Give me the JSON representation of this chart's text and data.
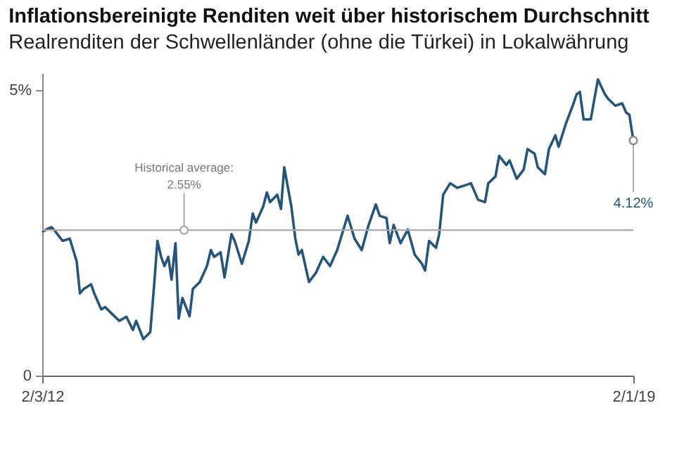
{
  "chart_data": {
    "type": "line",
    "title": "Inflationsbereinigte Renditen weit über historischem Durchschnitt",
    "subtitle": "Realrenditen der Schwellenländer (ohne die Türkei) in Lokalwährung",
    "x": [
      "2012-02-03",
      "2012-03-01",
      "2012-03-15",
      "2012-04-01",
      "2012-05-01",
      "2012-06-01",
      "2012-07-01",
      "2012-07-15",
      "2012-08-01",
      "2012-09-01",
      "2012-09-15",
      "2012-10-15",
      "2012-11-01",
      "2012-12-01",
      "2013-01-01",
      "2013-02-01",
      "2013-03-01",
      "2013-03-15",
      "2013-04-15",
      "2013-05-15",
      "2013-06-01",
      "2013-06-15",
      "2013-07-01",
      "2013-07-15",
      "2013-08-01",
      "2013-08-15",
      "2013-09-01",
      "2013-09-15",
      "2013-10-01",
      "2013-11-01",
      "2013-11-15",
      "2013-12-15",
      "2014-01-15",
      "2014-02-01",
      "2014-02-15",
      "2014-03-15",
      "2014-04-01",
      "2014-05-01",
      "2014-05-15",
      "2014-06-15",
      "2014-07-15",
      "2014-08-01",
      "2014-08-15",
      "2014-09-15",
      "2014-10-01",
      "2014-10-15",
      "2014-11-15",
      "2014-12-01",
      "2014-12-15",
      "2015-01-15",
      "2015-02-01",
      "2015-02-15",
      "2015-03-01",
      "2015-04-01",
      "2015-05-01",
      "2015-06-01",
      "2015-07-01",
      "2015-08-01",
      "2015-09-15",
      "2015-10-15",
      "2015-11-15",
      "2015-12-15",
      "2016-01-15",
      "2016-02-01",
      "2016-03-01",
      "2016-03-15",
      "2016-04-01",
      "2016-05-01",
      "2016-06-01",
      "2016-07-01",
      "2016-08-01",
      "2016-08-15",
      "2016-09-01",
      "2016-10-01",
      "2016-10-15",
      "2016-11-01",
      "2016-12-01",
      "2017-01-01",
      "2017-02-01",
      "2017-03-01",
      "2017-04-01",
      "2017-05-01",
      "2017-05-15",
      "2017-06-15",
      "2017-07-01",
      "2017-08-01",
      "2017-08-15",
      "2017-09-15",
      "2017-10-15",
      "2017-11-01",
      "2017-12-01",
      "2017-12-15",
      "2018-01-15",
      "2018-02-01",
      "2018-03-01",
      "2018-03-15",
      "2018-04-15",
      "2018-05-15",
      "2018-06-01",
      "2018-06-15",
      "2018-07-01",
      "2018-08-01",
      "2018-08-15",
      "2018-09-01",
      "2018-10-01",
      "2018-10-15",
      "2018-11-15",
      "2018-12-15",
      "2019-01-01",
      "2019-01-15",
      "2019-02-01"
    ],
    "series": [
      {
        "color": "#24557a",
        "values": [
          2.52,
          2.58,
          2.6,
          2.52,
          2.36,
          2.4,
          2.0,
          1.44,
          1.52,
          1.6,
          1.44,
          1.16,
          1.2,
          1.08,
          0.96,
          1.03,
          0.8,
          0.96,
          0.64,
          0.76,
          1.6,
          2.36,
          2.08,
          1.92,
          2.08,
          1.68,
          2.32,
          1.0,
          1.36,
          1.04,
          1.52,
          1.64,
          1.92,
          2.2,
          2.08,
          2.16,
          1.72,
          2.48,
          2.36,
          1.96,
          2.36,
          2.84,
          2.68,
          2.96,
          3.21,
          3.04,
          3.17,
          2.92,
          3.65,
          2.96,
          2.4,
          2.12,
          2.2,
          1.64,
          1.8,
          2.08,
          1.92,
          2.2,
          2.8,
          2.4,
          2.2,
          2.64,
          3.0,
          2.8,
          2.76,
          2.32,
          2.64,
          2.32,
          2.56,
          2.12,
          1.96,
          1.84,
          2.36,
          2.24,
          2.48,
          3.17,
          3.37,
          3.29,
          3.33,
          3.37,
          3.08,
          3.04,
          3.37,
          3.49,
          3.85,
          3.69,
          3.77,
          3.45,
          3.61,
          3.97,
          3.89,
          3.65,
          3.53,
          3.97,
          4.21,
          4.01,
          4.41,
          4.73,
          4.93,
          4.97,
          4.49,
          4.49,
          4.81,
          5.19,
          4.93,
          4.85,
          4.73,
          4.77,
          4.61,
          4.57,
          4.12
        ]
      }
    ],
    "xlim": [
      "2012-02-03",
      "2019-02-01"
    ],
    "xticks": [
      {
        "value": "2012-02-03",
        "label": "2/3/12"
      },
      {
        "value": "2019-02-01",
        "label": "2/1/19"
      }
    ],
    "ylim": [
      0,
      5.3
    ],
    "yticks": [
      0,
      {
        "value": 5,
        "label": "5%"
      }
    ],
    "ref_lines": [
      {
        "axis": "y",
        "value": 2.55,
        "label": "Historical average:\n2.55%",
        "color": "#aaaaaa"
      }
    ],
    "annotations": [
      {
        "text": "4.12%",
        "x": "2019-02-01",
        "y": 4.12
      }
    ],
    "marker": "none",
    "line_style": "solid"
  }
}
